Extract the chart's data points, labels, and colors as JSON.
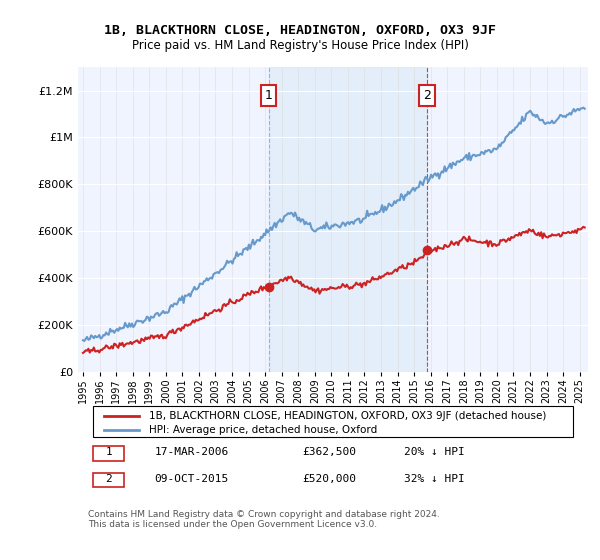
{
  "title": "1B, BLACKTHORN CLOSE, HEADINGTON, OXFORD, OX3 9JF",
  "subtitle": "Price paid vs. HM Land Registry's House Price Index (HPI)",
  "ylabel_ticks": [
    "£0",
    "£200K",
    "£400K",
    "£600K",
    "£800K",
    "£1M",
    "£1.2M"
  ],
  "ytick_values": [
    0,
    200000,
    400000,
    600000,
    800000,
    1000000,
    1200000
  ],
  "ylim": [
    0,
    1300000
  ],
  "xlim_start": 1995.0,
  "xlim_end": 2025.5,
  "background_color": "#f0f4ff",
  "plot_bg_color": "#f0f4ff",
  "hpi_color": "#6699cc",
  "price_color": "#cc2222",
  "sale1_x": 2006.21,
  "sale1_y": 362500,
  "sale2_x": 2015.77,
  "sale2_y": 520000,
  "legend_label1": "1B, BLACKTHORN CLOSE, HEADINGTON, OXFORD, OX3 9JF (detached house)",
  "legend_label2": "HPI: Average price, detached house, Oxford",
  "annotation1_label": "1",
  "annotation2_label": "2",
  "table_row1": "1    17-MAR-2006    £362,500    20% ↓ HPI",
  "table_row2": "2    09-OCT-2015    £520,000    32% ↓ HPI",
  "footer": "Contains HM Land Registry data © Crown copyright and database right 2024.\nThis data is licensed under the Open Government Licence v3.0.",
  "xtick_years": [
    1995,
    1996,
    1997,
    1998,
    1999,
    2000,
    2001,
    2002,
    2003,
    2004,
    2005,
    2006,
    2007,
    2008,
    2009,
    2010,
    2011,
    2012,
    2013,
    2014,
    2015,
    2016,
    2017,
    2018,
    2019,
    2020,
    2021,
    2022,
    2023,
    2024,
    2025
  ]
}
